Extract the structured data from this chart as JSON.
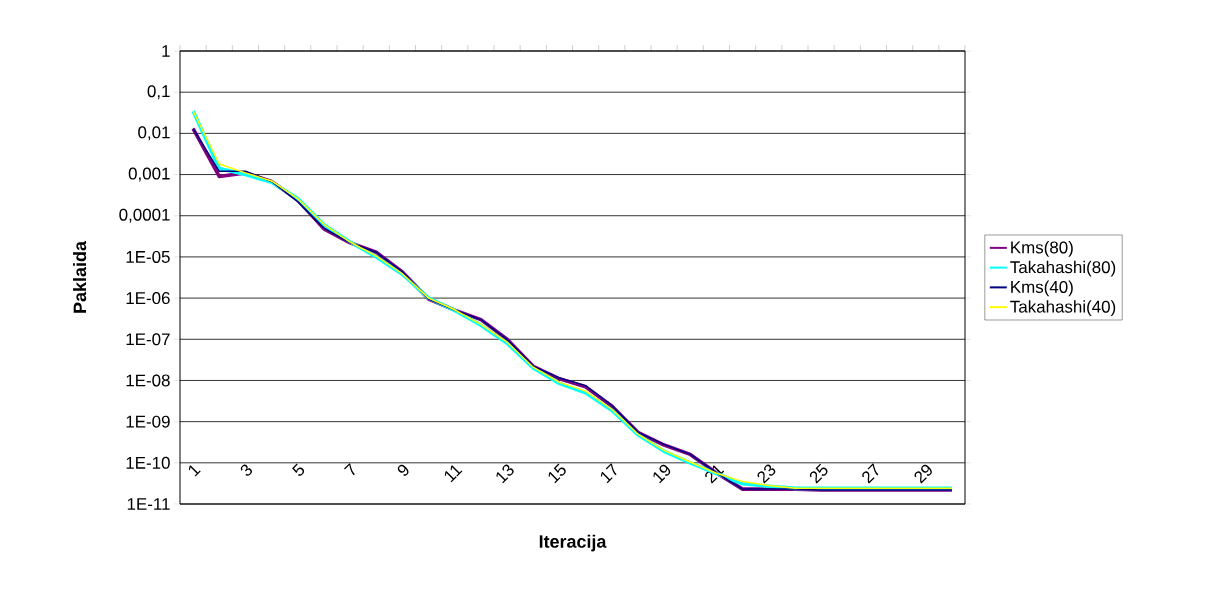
{
  "chart_data": {
    "type": "line",
    "xlabel": "Iteracija",
    "ylabel": "Paklaida",
    "categories": [
      "1",
      null,
      "3",
      null,
      "5",
      null,
      "7",
      null,
      "9",
      null,
      "11",
      null,
      "13",
      null,
      "15",
      null,
      "17",
      null,
      "19",
      null,
      "21",
      null,
      "23",
      null,
      "25",
      null,
      "27",
      null,
      "29",
      null
    ],
    "series": [
      {
        "name": "Kms(80)",
        "color": "#800080",
        "values": [
          0.013,
          0.0009,
          0.0011,
          0.00068,
          0.00024,
          4.8e-05,
          2.2e-05,
          1.3e-05,
          4.3e-06,
          9.5e-07,
          5.1e-07,
          3e-07,
          1e-07,
          2.2e-08,
          1.1e-08,
          7e-09,
          2.4e-09,
          5.5e-10,
          2.7e-10,
          1.6e-10,
          5.7e-11,
          2.3e-11,
          2.3e-11,
          2.3e-11,
          2.2e-11,
          2.2e-11,
          2.2e-11,
          2.2e-11,
          2.2e-11,
          2.2e-11
        ]
      },
      {
        "name": "Takahashi(80)",
        "color": "#00ffff",
        "values": [
          0.035,
          0.0014,
          0.001,
          0.00065,
          0.00026,
          6e-05,
          2.3e-05,
          1e-05,
          3.8e-06,
          1e-06,
          5e-07,
          2.2e-07,
          8e-08,
          2e-08,
          8.5e-09,
          5e-09,
          1.9e-09,
          4.8e-10,
          1.9e-10,
          1e-10,
          5.5e-11,
          3.1e-11,
          2.7e-11,
          2.4e-11,
          2.4e-11,
          2.4e-11,
          2.4e-11,
          2.4e-11,
          2.4e-11,
          2.4e-11
        ]
      },
      {
        "name": "Kms(40)",
        "color": "#000080",
        "values": [
          0.013,
          0.0012,
          0.0012,
          0.00068,
          0.00022,
          5e-05,
          2.2e-05,
          1.3e-05,
          4.3e-06,
          9.5e-07,
          5.1e-07,
          3e-07,
          1e-07,
          2.2e-08,
          1.15e-08,
          7.5e-09,
          2.5e-09,
          5.5e-10,
          2.8e-10,
          1.6e-10,
          5.7e-11,
          2.3e-11,
          2.3e-11,
          2.3e-11,
          2.2e-11,
          2.2e-11,
          2.2e-11,
          2.2e-11,
          2.2e-11,
          2.2e-11
        ]
      },
      {
        "name": "Takahashi(40)",
        "color": "#ffff00",
        "values": [
          0.035,
          0.0018,
          0.0011,
          0.0007,
          0.00026,
          6.2e-05,
          2.3e-05,
          1.05e-05,
          3.9e-06,
          1e-06,
          5.2e-07,
          2.3e-07,
          8.5e-08,
          2.1e-08,
          9e-09,
          5.5e-09,
          2e-09,
          5e-10,
          2e-10,
          1.05e-10,
          5.6e-11,
          3.5e-11,
          2.8e-11,
          2.4e-11,
          2.4e-11,
          2.4e-11,
          2.4e-11,
          2.4e-11,
          2.4e-11,
          2.4e-11
        ]
      }
    ],
    "ylim": [
      1e-11,
      1
    ],
    "yticks": [
      1,
      {
        "value": 0.1,
        "label": "0,1"
      },
      {
        "value": 0.01,
        "label": "0,01"
      },
      {
        "value": 0.001,
        "label": "0,001"
      },
      {
        "value": 0.0001,
        "label": "0,0001"
      },
      {
        "value": 1e-05,
        "label": "1E-05"
      },
      {
        "value": 1e-06,
        "label": "1E-06"
      },
      {
        "value": 1e-07,
        "label": "1E-07"
      },
      {
        "value": 1e-08,
        "label": "1E-08"
      },
      {
        "value": 1e-09,
        "label": "1E-09"
      },
      {
        "value": 1e-10,
        "label": "1E-10"
      },
      {
        "value": 1e-11,
        "label": "1E-11"
      }
    ],
    "log": "y",
    "grid": "y",
    "legend": "right",
    "marker": "none",
    "line_style": "solid"
  }
}
